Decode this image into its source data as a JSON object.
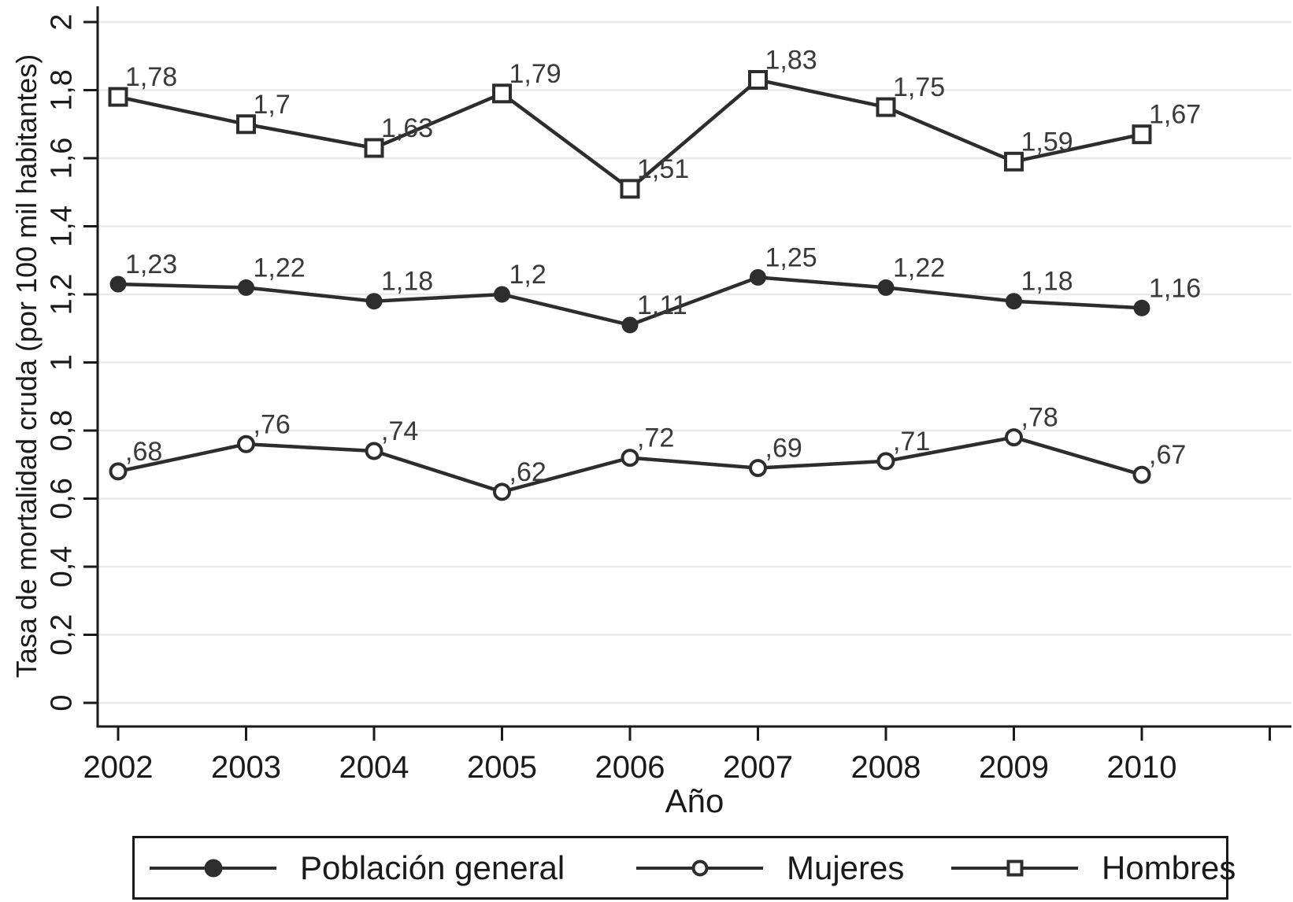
{
  "chart_data": {
    "type": "line",
    "title": "",
    "xlabel": "Año",
    "ylabel": "Tasa de mortalidad cruda (por 100 mil habitantes)",
    "categories": [
      "2002",
      "2003",
      "2004",
      "2005",
      "2006",
      "2007",
      "2008",
      "2009",
      "2010"
    ],
    "y_ticks": {
      "values": [
        0,
        0.2,
        0.4,
        0.6,
        0.8,
        1,
        1.2,
        1.4,
        1.6,
        1.8,
        2
      ],
      "labels": [
        "0",
        "0,2",
        "0,4",
        "0,6",
        "0,8",
        "1",
        "1,2",
        "1,4",
        "1,6",
        "1,8",
        "2"
      ]
    },
    "ylim": [
      0,
      2.05
    ],
    "grid": "horizontal",
    "legend_position": "bottom",
    "series": [
      {
        "name": "Población general",
        "marker": "filled-circle",
        "values": [
          1.23,
          1.22,
          1.18,
          1.2,
          1.11,
          1.25,
          1.22,
          1.18,
          1.16
        ],
        "labels": [
          "1,23",
          "1,22",
          "1,18",
          "1,2",
          "1,11",
          "1,25",
          "1,22",
          "1,18",
          "1,16"
        ]
      },
      {
        "name": "Mujeres",
        "marker": "open-circle",
        "values": [
          0.68,
          0.76,
          0.74,
          0.62,
          0.72,
          0.69,
          0.71,
          0.78,
          0.67
        ],
        "labels": [
          ",68",
          ",76",
          ",74",
          ",62",
          ",72",
          ",69",
          ",71",
          ",78",
          ",67"
        ]
      },
      {
        "name": "Hombres",
        "marker": "open-square",
        "values": [
          1.78,
          1.7,
          1.63,
          1.79,
          1.51,
          1.83,
          1.75,
          1.59,
          1.67
        ],
        "labels": [
          "1,78",
          "1,7",
          "1,63",
          "1,79",
          "1,51",
          "1,83",
          "1,75",
          "1,59",
          "1,67"
        ]
      }
    ],
    "colors": {
      "line": "#2d2d2d",
      "axis": "#1a1a1a",
      "grid": "#eaeaea",
      "data_label": "#3a3a3a",
      "background": "#ffffff"
    }
  }
}
